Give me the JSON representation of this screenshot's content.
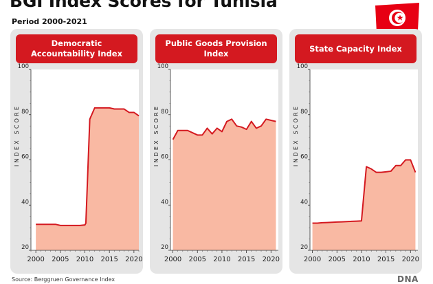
{
  "title": "BGI Index Scores for Tunisia",
  "subtitle": "Period 2000-2021",
  "source": "Source: Berggruen Governance Index",
  "logo_text": "DNA",
  "colors": {
    "header": "#d41920",
    "line": "#d41920",
    "fill": "#f9b9a3",
    "panel": "#e5e5e5",
    "flag_red": "#e70013"
  },
  "chart_data": [
    {
      "type": "area",
      "title": "Democratic Accountability Index",
      "ylabel": "INDEX SCORE",
      "ylim": [
        20,
        100
      ],
      "xlim": [
        1999,
        2021
      ],
      "yticks": [
        20,
        40,
        60,
        80,
        100
      ],
      "xticks": [
        2000,
        2005,
        2010,
        2015,
        2020
      ],
      "x": [
        2000,
        2001,
        2002,
        2003,
        2004,
        2005,
        2006,
        2007,
        2008,
        2009,
        2010,
        2010.2,
        2011,
        2012,
        2013,
        2014,
        2015,
        2016,
        2017,
        2018,
        2019,
        2020,
        2021
      ],
      "values": [
        31.5,
        31.5,
        31.5,
        31.5,
        31.5,
        31,
        31,
        31,
        31,
        31,
        31.2,
        32,
        78,
        83,
        83,
        83,
        83,
        82.5,
        82.5,
        82.5,
        81,
        81,
        79.5
      ]
    },
    {
      "type": "area",
      "title": "Public Goods Provision Index",
      "ylabel": "INDEX SCORE",
      "ylim": [
        20,
        100
      ],
      "xlim": [
        1999.5,
        2021.5
      ],
      "yticks": [
        20,
        40,
        60,
        80,
        100
      ],
      "xticks": [
        2000,
        2005,
        2010,
        2015,
        2020
      ],
      "x": [
        2000,
        2001,
        2002,
        2003,
        2004,
        2005,
        2006,
        2007,
        2008,
        2009,
        2010,
        2011,
        2012,
        2013,
        2014,
        2015,
        2016,
        2017,
        2018,
        2019,
        2020,
        2021
      ],
      "values": [
        69,
        73,
        73,
        73,
        72,
        71,
        71,
        74,
        71.5,
        74,
        72.5,
        77,
        78,
        75,
        74.5,
        73.5,
        77,
        74,
        75,
        78,
        77.5,
        77
      ]
    },
    {
      "type": "area",
      "title": "State Capacity Index",
      "ylabel": "INDEX SCORE",
      "ylim": [
        20,
        100
      ],
      "xlim": [
        1999.5,
        2021.5
      ],
      "yticks": [
        20,
        40,
        60,
        80,
        100
      ],
      "xticks": [
        2000,
        2005,
        2010,
        2015,
        2020
      ],
      "x": [
        2000,
        2001,
        2002,
        2003,
        2004,
        2005,
        2006,
        2007,
        2008,
        2009,
        2010,
        2011,
        2012,
        2013,
        2014,
        2015,
        2016,
        2017,
        2018,
        2019,
        2020,
        2021
      ],
      "values": [
        32,
        32,
        32.2,
        32.3,
        32.4,
        32.5,
        32.6,
        32.7,
        32.8,
        32.9,
        33,
        57,
        56,
        54.5,
        54.5,
        54.7,
        55,
        57.5,
        57.5,
        60,
        60,
        54.5
      ]
    }
  ]
}
